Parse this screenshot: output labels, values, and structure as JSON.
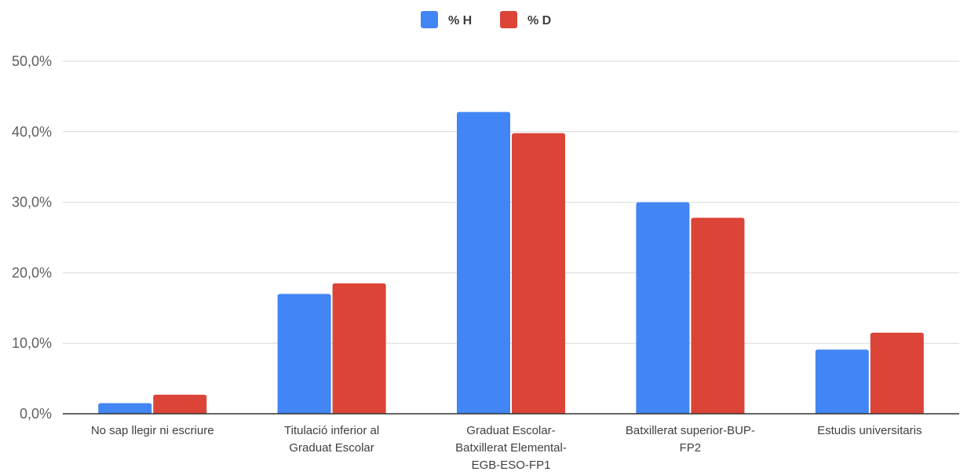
{
  "colors": {
    "series_h": "#4285f4",
    "series_d": "#db4437",
    "grid": "#d9d9d9",
    "axis": "#333333"
  },
  "chart_data": {
    "type": "bar",
    "title": "",
    "xlabel": "",
    "ylabel": "",
    "legend_position": "top-center",
    "grid": true,
    "ylim": [
      0,
      50
    ],
    "y_ticks": [
      0,
      10,
      20,
      30,
      40,
      50
    ],
    "y_tick_labels": [
      "0,0%",
      "10,0%",
      "20,0%",
      "30,0%",
      "40,0%",
      "50,0%"
    ],
    "categories": [
      [
        "No sap llegir ni escriure"
      ],
      [
        "Titulació inferior al",
        "Graduat Escolar"
      ],
      [
        "Graduat Escolar-",
        "Batxillerat Elemental-",
        "EGB-ESO-FP1"
      ],
      [
        "Batxillerat superior-BUP-",
        "FP2"
      ],
      [
        "Estudis universitaris"
      ]
    ],
    "series": [
      {
        "name": "% H",
        "color": "#4285f4",
        "values": [
          1.5,
          17.0,
          42.8,
          30.0,
          9.1
        ]
      },
      {
        "name": "% D",
        "color": "#db4437",
        "values": [
          2.7,
          18.5,
          39.8,
          27.8,
          11.5
        ]
      }
    ]
  }
}
